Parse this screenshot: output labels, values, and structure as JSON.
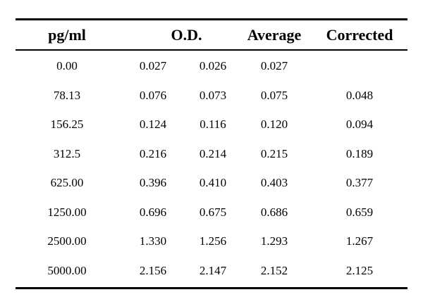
{
  "table": {
    "headers": {
      "concentration": "pg/ml",
      "od": "O.D.",
      "average": "Average",
      "corrected": "Corrected"
    },
    "rows": [
      {
        "conc": "0.00",
        "od1": "0.027",
        "od2": "0.026",
        "avg": "0.027",
        "corr": ""
      },
      {
        "conc": "78.13",
        "od1": "0.076",
        "od2": "0.073",
        "avg": "0.075",
        "corr": "0.048"
      },
      {
        "conc": "156.25",
        "od1": "0.124",
        "od2": "0.116",
        "avg": "0.120",
        "corr": "0.094"
      },
      {
        "conc": "312.5",
        "od1": "0.216",
        "od2": "0.214",
        "avg": "0.215",
        "corr": "0.189"
      },
      {
        "conc": "625.00",
        "od1": "0.396",
        "od2": "0.410",
        "avg": "0.403",
        "corr": "0.377"
      },
      {
        "conc": "1250.00",
        "od1": "0.696",
        "od2": "0.675",
        "avg": "0.686",
        "corr": "0.659"
      },
      {
        "conc": "2500.00",
        "od1": "1.330",
        "od2": "1.256",
        "avg": "1.293",
        "corr": "1.267"
      },
      {
        "conc": "5000.00",
        "od1": "2.156",
        "od2": "2.147",
        "avg": "2.152",
        "corr": "2.125"
      }
    ]
  }
}
